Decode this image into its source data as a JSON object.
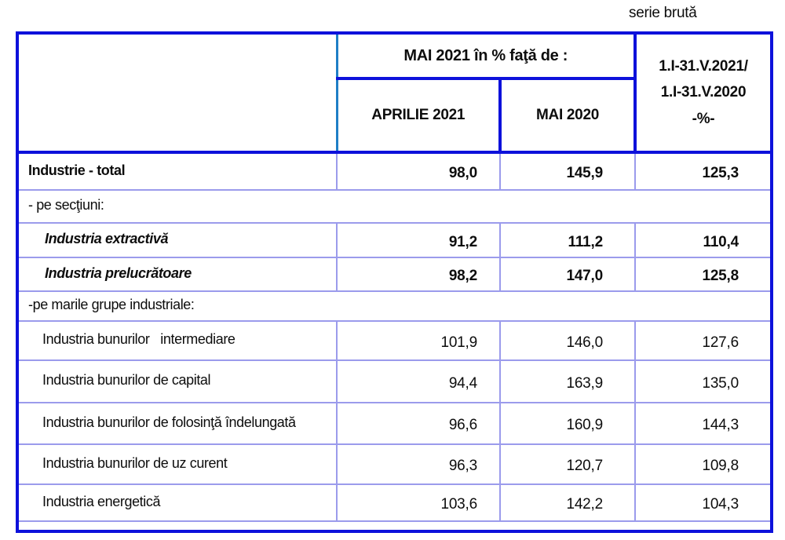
{
  "annotation": "serie brută",
  "colors": {
    "border_thick": "#0d11db",
    "border_header_divider": "#1e7ec6",
    "border_thin": "#9b9bec",
    "text": "#0d0d0d",
    "background": "#ffffff"
  },
  "table": {
    "header": {
      "group_title": "MAI 2021 în % faţă de :",
      "col_april": "APRILIE 2021",
      "col_may": "MAI 2020",
      "right_col": [
        "1.I-31.V.2021/",
        "1.I-31.V.2020",
        "-%-"
      ]
    },
    "rows": [
      {
        "label": "Industrie - total",
        "style": "total",
        "values": [
          "98,0",
          "145,9",
          "125,3"
        ]
      },
      {
        "label": "- pe secţiuni:",
        "style": "group",
        "values": null
      },
      {
        "label": "Industria extractivă",
        "style": "bold-italic",
        "values": [
          "91,2",
          "111,2",
          "110,4"
        ]
      },
      {
        "label": "Industria prelucrătoare",
        "style": "bold-italic",
        "values": [
          "98,2",
          "147,0",
          "125,8"
        ]
      },
      {
        "label": "-pe marile grupe industriale:",
        "style": "group",
        "values": null
      },
      {
        "label": "Industria bunurilor   intermediare",
        "style": "item",
        "values": [
          "101,9",
          "146,0",
          "127,6"
        ]
      },
      {
        "label": "Industria bunurilor de capital",
        "style": "item",
        "values": [
          "94,4",
          "163,9",
          "135,0"
        ]
      },
      {
        "label": "Industria bunurilor de folosinţă îndelungată",
        "style": "item",
        "values": [
          "96,6",
          "160,9",
          "144,3"
        ]
      },
      {
        "label": "Industria bunurilor de uz curent",
        "style": "item",
        "values": [
          "96,3",
          "120,7",
          "109,8"
        ]
      },
      {
        "label": "Industria energetică",
        "style": "item",
        "values": [
          "103,6",
          "142,2",
          "104,3"
        ]
      }
    ]
  }
}
